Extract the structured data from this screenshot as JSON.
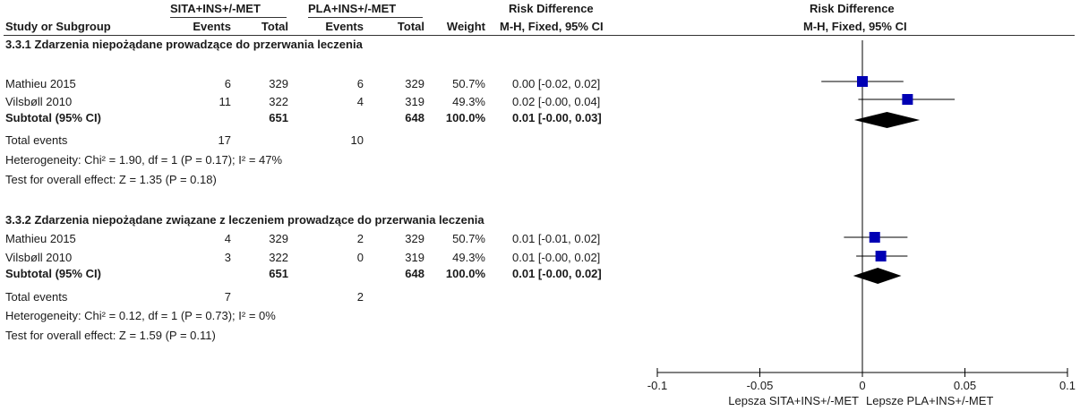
{
  "header": {
    "group1": "SITA+INS+/-MET",
    "group2": "PLA+INS+/-MET",
    "rd_left_title": "Risk Difference",
    "rd_left_sub": "M-H, Fixed, 95% CI",
    "rd_right_title": "Risk Difference",
    "rd_right_sub": "M-H, Fixed, 95% CI",
    "study_col": "Study or Subgroup",
    "events1": "Events",
    "total1": "Total",
    "events2": "Events",
    "total2": "Total",
    "weight": "Weight"
  },
  "subgroups": [
    {
      "title": "3.3.1 Zdarzenia niepożądane prowadzące do przerwania leczenia",
      "rows": [
        {
          "study": "Mathieu 2015",
          "e1": "6",
          "t1": "329",
          "e2": "6",
          "t2": "329",
          "w": "50.7%",
          "ci": "0.00 [-0.02, 0.02]"
        },
        {
          "study": "Vilsbøll 2010",
          "e1": "11",
          "t1": "322",
          "e2": "4",
          "t2": "319",
          "w": "49.3%",
          "ci": "0.02 [-0.00, 0.04]"
        }
      ],
      "subtotal": {
        "label": "Subtotal (95% CI)",
        "t1": "651",
        "t2": "648",
        "w": "100.0%",
        "ci": "0.01 [-0.00, 0.03]"
      },
      "total_events": {
        "label": "Total events",
        "e1": "17",
        "e2": "10"
      },
      "heterogeneity": "Heterogeneity: Chi² = 1.90, df = 1 (P = 0.17); I² = 47%",
      "overall": "Test for overall effect: Z = 1.35 (P = 0.18)"
    },
    {
      "title": "3.3.2 Zdarzenia niepożądane związane z leczeniem prowadzące do przerwania leczenia",
      "rows": [
        {
          "study": "Mathieu 2015",
          "e1": "4",
          "t1": "329",
          "e2": "2",
          "t2": "329",
          "w": "50.7%",
          "ci": "0.01 [-0.01, 0.02]"
        },
        {
          "study": "Vilsbøll 2010",
          "e1": "3",
          "t1": "322",
          "e2": "0",
          "t2": "319",
          "w": "49.3%",
          "ci": "0.01 [-0.00, 0.02]"
        }
      ],
      "subtotal": {
        "label": "Subtotal (95% CI)",
        "t1": "651",
        "t2": "648",
        "w": "100.0%",
        "ci": "0.01 [-0.00, 0.02]"
      },
      "total_events": {
        "label": "Total events",
        "e1": "7",
        "e2": "2"
      },
      "heterogeneity": "Heterogeneity: Chi² = 0.12, df = 1 (P = 0.73); I² = 0%",
      "overall": "Test for overall effect: Z = 1.59 (P = 0.11)"
    }
  ],
  "chart_data": {
    "type": "forest",
    "xlim": [
      -0.1,
      0.1
    ],
    "ticks": [
      "-0.1",
      "-0.05",
      "0",
      "0.05",
      "0.1"
    ],
    "tick_values": [
      -0.1,
      -0.05,
      0,
      0.05,
      0.1
    ],
    "xlabel_left": "Lepsza SITA+INS+/-MET",
    "xlabel_right": "Lepsze PLA+INS+/-MET",
    "colors": {
      "marker": "#0000b4",
      "diamond": "#000000",
      "line": "#000000"
    },
    "studies": [
      {
        "name": "Mathieu 2015",
        "subgroup": 0,
        "est": 0.0,
        "lo": -0.02,
        "hi": 0.02,
        "weight": 50.7
      },
      {
        "name": "Vilsbøll 2010",
        "subgroup": 0,
        "est": 0.022,
        "lo": -0.002,
        "hi": 0.045,
        "weight": 49.3
      },
      {
        "name": "Mathieu 2015",
        "subgroup": 1,
        "est": 0.006,
        "lo": -0.009,
        "hi": 0.022,
        "weight": 50.7
      },
      {
        "name": "Vilsbøll 2010",
        "subgroup": 1,
        "est": 0.009,
        "lo": -0.003,
        "hi": 0.022,
        "weight": 49.3
      }
    ],
    "subtotals": [
      {
        "subgroup": 0,
        "est": 0.012,
        "lo": -0.004,
        "hi": 0.028
      },
      {
        "subgroup": 1,
        "est": 0.0075,
        "lo": -0.0045,
        "hi": 0.019
      }
    ]
  }
}
